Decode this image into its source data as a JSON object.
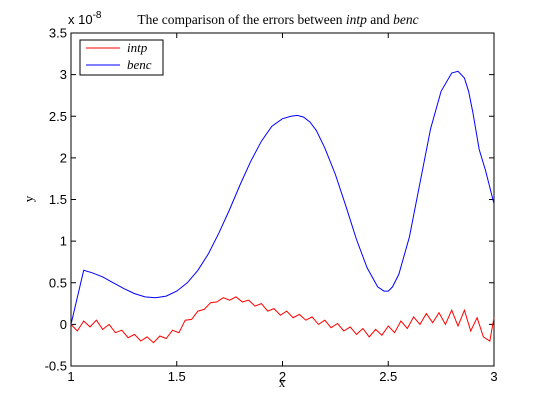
{
  "chart_data": {
    "type": "line",
    "title_parts": [
      {
        "text": "The comparison of the errors between ",
        "italic": false
      },
      {
        "text": "intp",
        "italic": true
      },
      {
        "text": " and ",
        "italic": false
      },
      {
        "text": "benc",
        "italic": true
      }
    ],
    "xlabel": "x",
    "ylabel": "y",
    "y_exponent_label": "x 10",
    "y_exponent_power": "-8",
    "xlim": [
      1,
      3
    ],
    "ylim": [
      -0.5,
      3.5
    ],
    "x_ticks": [
      1,
      1.5,
      2,
      2.5,
      3
    ],
    "x_tick_labels": [
      "1",
      "1.5",
      "2",
      "2.5",
      "3"
    ],
    "y_ticks": [
      -0.5,
      0,
      0.5,
      1,
      1.5,
      2,
      2.5,
      3,
      3.5
    ],
    "y_tick_labels": [
      "-0.5",
      "0",
      "0.5",
      "1",
      "1.5",
      "2",
      "2.5",
      "3",
      "3.5"
    ],
    "grid": false,
    "legend_position": "top-left",
    "series": [
      {
        "name": "intp",
        "color": "#ff0000",
        "x": [
          1.0,
          1.03,
          1.06,
          1.09,
          1.12,
          1.15,
          1.18,
          1.21,
          1.24,
          1.27,
          1.3,
          1.33,
          1.36,
          1.39,
          1.42,
          1.45,
          1.48,
          1.51,
          1.54,
          1.57,
          1.6,
          1.63,
          1.66,
          1.69,
          1.72,
          1.75,
          1.78,
          1.81,
          1.84,
          1.87,
          1.9,
          1.93,
          1.96,
          1.99,
          2.02,
          2.05,
          2.08,
          2.11,
          2.14,
          2.17,
          2.2,
          2.23,
          2.26,
          2.29,
          2.32,
          2.35,
          2.38,
          2.41,
          2.44,
          2.47,
          2.5,
          2.53,
          2.56,
          2.59,
          2.62,
          2.65,
          2.68,
          2.71,
          2.74,
          2.77,
          2.8,
          2.83,
          2.86,
          2.89,
          2.92,
          2.95,
          2.98,
          3.0
        ],
        "y": [
          0.0,
          -0.08,
          0.04,
          -0.03,
          0.05,
          -0.06,
          0.0,
          -0.1,
          -0.07,
          -0.16,
          -0.12,
          -0.2,
          -0.15,
          -0.22,
          -0.14,
          -0.17,
          -0.07,
          -0.1,
          0.05,
          0.06,
          0.16,
          0.18,
          0.26,
          0.27,
          0.32,
          0.29,
          0.33,
          0.27,
          0.29,
          0.22,
          0.25,
          0.16,
          0.19,
          0.11,
          0.16,
          0.08,
          0.12,
          0.05,
          0.09,
          0.0,
          0.05,
          -0.04,
          0.01,
          -0.08,
          -0.03,
          -0.12,
          -0.05,
          -0.15,
          -0.06,
          -0.13,
          -0.02,
          -0.1,
          0.04,
          -0.05,
          0.09,
          0.0,
          0.13,
          0.02,
          0.14,
          0.0,
          0.17,
          -0.02,
          0.17,
          -0.08,
          0.08,
          -0.15,
          -0.2,
          0.08
        ]
      },
      {
        "name": "benc",
        "color": "#0000ff",
        "x": [
          1.0,
          1.06,
          1.1,
          1.15,
          1.2,
          1.25,
          1.3,
          1.35,
          1.4,
          1.45,
          1.5,
          1.55,
          1.6,
          1.65,
          1.7,
          1.75,
          1.8,
          1.85,
          1.9,
          1.95,
          2.0,
          2.04,
          2.07,
          2.1,
          2.13,
          2.16,
          2.2,
          2.25,
          2.3,
          2.35,
          2.4,
          2.45,
          2.48,
          2.5,
          2.52,
          2.55,
          2.6,
          2.65,
          2.7,
          2.75,
          2.8,
          2.83,
          2.86,
          2.88,
          2.9,
          2.93,
          2.96,
          3.0
        ],
        "y": [
          0.0,
          0.65,
          0.62,
          0.57,
          0.5,
          0.43,
          0.37,
          0.33,
          0.32,
          0.34,
          0.4,
          0.5,
          0.65,
          0.85,
          1.1,
          1.38,
          1.68,
          1.96,
          2.2,
          2.38,
          2.47,
          2.5,
          2.51,
          2.49,
          2.43,
          2.33,
          2.12,
          1.8,
          1.42,
          1.02,
          0.68,
          0.45,
          0.4,
          0.4,
          0.45,
          0.6,
          1.05,
          1.7,
          2.35,
          2.8,
          3.02,
          3.04,
          2.96,
          2.8,
          2.55,
          2.1,
          1.85,
          1.45
        ]
      }
    ]
  }
}
